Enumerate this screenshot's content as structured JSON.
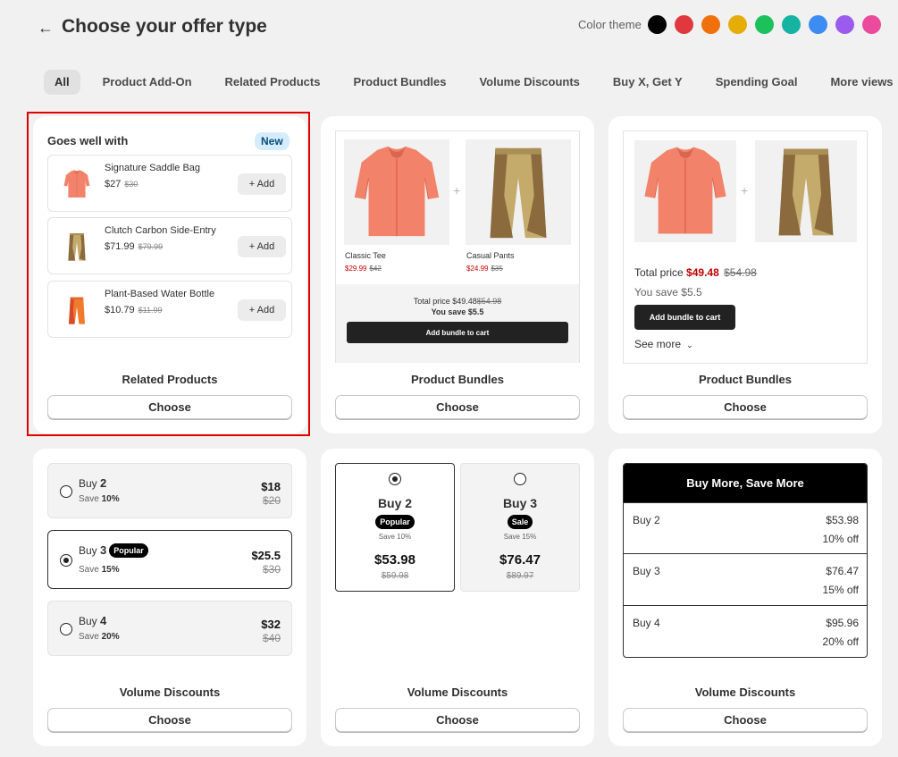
{
  "header": {
    "back_icon": "←",
    "title": "Choose your offer type",
    "color_theme_label": "Color theme",
    "swatches": [
      "#000000",
      "#e0383e",
      "#f0700e",
      "#e6ad06",
      "#1cc15b",
      "#16b3a3",
      "#3d8cf2",
      "#9b5ced",
      "#ea4b9d"
    ]
  },
  "tabs": [
    {
      "label": "All",
      "active": true
    },
    {
      "label": "Product Add-On"
    },
    {
      "label": "Related Products"
    },
    {
      "label": "Product Bundles"
    },
    {
      "label": "Volume Discounts"
    },
    {
      "label": "Buy X, Get Y"
    },
    {
      "label": "Spending Goal"
    },
    {
      "label": "More views",
      "icon": "chevron-down-icon"
    }
  ],
  "choose_label": "Choose",
  "related": {
    "heading": "Goes well with",
    "badge": "New",
    "add_label": "+ Add",
    "items": [
      {
        "name": "Signature Saddle Bag",
        "price": "$27",
        "compare": "$30",
        "icon": "shirt-icon"
      },
      {
        "name": "Clutch Carbon Side-Entry",
        "price": "$71.99",
        "compare": "$79.99",
        "icon": "pants-icon"
      },
      {
        "name": "Plant-Based Water Bottle",
        "price": "$10.79",
        "compare": "$11.99",
        "icon": "orange-pants-icon"
      }
    ],
    "card_label": "Related Products"
  },
  "bundle1": {
    "plus": "+",
    "products": [
      {
        "name": "Classic Tee",
        "price": "$29.99",
        "compare": "$42"
      },
      {
        "name": "Casual Pants",
        "price": "$24.99",
        "compare": "$35"
      }
    ],
    "total_label": "Total price",
    "total": "$49.48",
    "total_compare": "$54.98",
    "save": "You save $5.5",
    "button": "Add bundle to cart",
    "card_label": "Product Bundles"
  },
  "bundle2": {
    "plus": "+",
    "total_label": "Total price",
    "total": "$49.48",
    "total_compare": "$54.98",
    "save": "You save $5.5",
    "button": "Add bundle to cart",
    "see_more": "See more",
    "card_label": "Product Bundles"
  },
  "volume1": {
    "options": [
      {
        "buy": "Buy",
        "qty": "2",
        "save": "Save",
        "pct": "10%",
        "price": "$18",
        "compare": "$20",
        "selected": false,
        "pill": ""
      },
      {
        "buy": "Buy",
        "qty": "3",
        "save": "Save",
        "pct": "15%",
        "price": "$25.5",
        "compare": "$30",
        "selected": true,
        "pill": "Popular"
      },
      {
        "buy": "Buy",
        "qty": "4",
        "save": "Save",
        "pct": "20%",
        "price": "$32",
        "compare": "$40",
        "selected": false,
        "pill": ""
      }
    ],
    "card_label": "Volume Discounts"
  },
  "volume2": {
    "tiles": [
      {
        "title": "Buy 2",
        "pill": "Popular",
        "save": "Save 10%",
        "price": "$53.98",
        "compare": "$59.98",
        "selected": true
      },
      {
        "title": "Buy 3",
        "pill": "Sale",
        "save": "Save 15%",
        "price": "$76.47",
        "compare": "$89.97",
        "selected": false
      }
    ],
    "card_label": "Volume Discounts"
  },
  "volume3": {
    "heading": "Buy More, Save More",
    "rows": [
      {
        "label": "Buy 2",
        "price": "$53.98",
        "off": "10% off"
      },
      {
        "label": "Buy 3",
        "price": "$76.47",
        "off": "15% off"
      },
      {
        "label": "Buy 4",
        "price": "$95.96",
        "off": "20% off"
      }
    ],
    "card_label": "Volume Discounts"
  }
}
